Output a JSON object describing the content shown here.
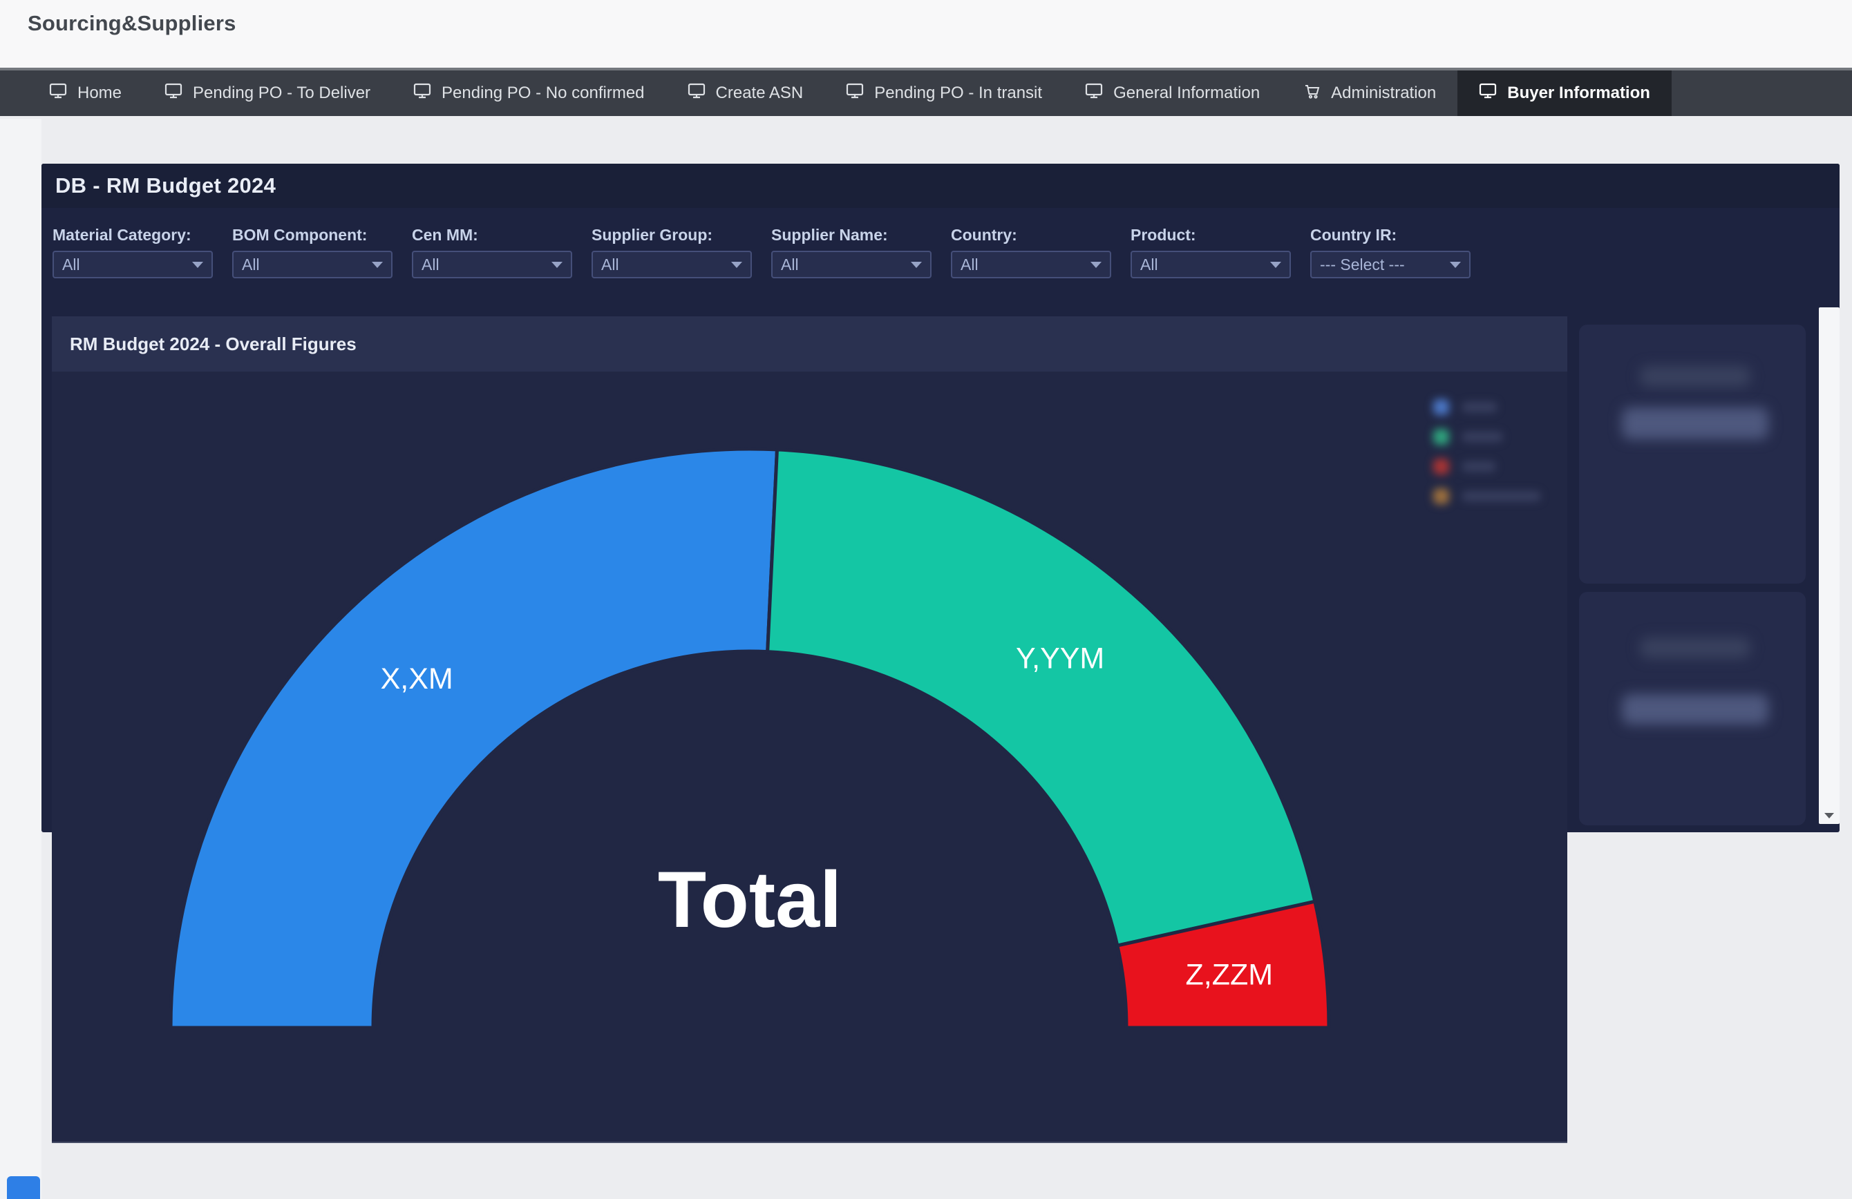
{
  "app": {
    "title": "Sourcing&Suppliers"
  },
  "nav": {
    "items": [
      {
        "label": "Home",
        "icon": "monitor-icon",
        "active": false
      },
      {
        "label": "Pending PO - To Deliver",
        "icon": "monitor-icon",
        "active": false
      },
      {
        "label": "Pending PO - No confirmed",
        "icon": "monitor-icon",
        "active": false
      },
      {
        "label": "Create ASN",
        "icon": "monitor-icon",
        "active": false
      },
      {
        "label": "Pending PO - In transit",
        "icon": "monitor-icon",
        "active": false
      },
      {
        "label": "General Information",
        "icon": "monitor-icon",
        "active": false
      },
      {
        "label": "Administration",
        "icon": "cart-icon",
        "active": false
      },
      {
        "label": "Buyer Information",
        "icon": "monitor-icon",
        "active": true
      }
    ]
  },
  "dashboard": {
    "title": "DB - RM Budget 2024",
    "filters": [
      {
        "label": "Material Category:",
        "value": "All"
      },
      {
        "label": "BOM Component:",
        "value": "All"
      },
      {
        "label": "Cen MM:",
        "value": "All"
      },
      {
        "label": "Supplier Group:",
        "value": "All"
      },
      {
        "label": "Supplier Name:",
        "value": "All"
      },
      {
        "label": "Country:",
        "value": "All"
      },
      {
        "label": "Product:",
        "value": "All"
      },
      {
        "label": "Country IR:",
        "value": "--- Select ---"
      }
    ]
  },
  "chart_panel": {
    "title": "RM Budget 2024 - Overall Figures"
  },
  "chart_data": {
    "type": "pie",
    "variant": "half-donut",
    "title": "RM Budget 2024 - Overall Figures",
    "center_label": "Total",
    "segments": [
      {
        "label": "X,XM",
        "value_pct": 51.5,
        "color": "#2B87E8"
      },
      {
        "label": "Y,YYM",
        "value_pct": 41.5,
        "color": "#14C6A4"
      },
      {
        "label": "Z,ZZM",
        "value_pct": 7.0,
        "color": "#E8121D"
      }
    ],
    "legend": {
      "position": "top-right",
      "blurred": true,
      "swatch_colors": [
        "#4A76C4",
        "#2FA37D",
        "#A83434",
        "#9C6F3D"
      ]
    },
    "colors": {
      "panel_background": "#212744",
      "segment_gap": "#212744",
      "label_text": "#FFFFFF"
    }
  },
  "side_panels": [
    {
      "blurred": true
    },
    {
      "blurred": true
    }
  ]
}
